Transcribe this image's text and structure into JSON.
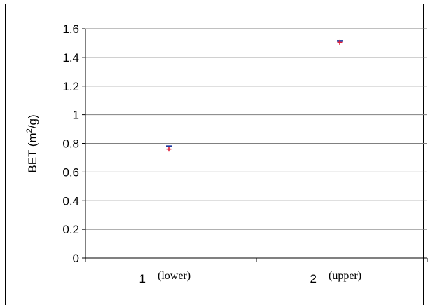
{
  "chart_data": {
    "type": "scatter",
    "title": "",
    "xlabel": "",
    "ylabel": "BET (m2/g)",
    "ylabel_parts": {
      "prefix": "BET (m",
      "sup": "2",
      "suffix": "/g)"
    },
    "ylim": [
      0,
      1.6
    ],
    "yticks": [
      "0",
      "0.2",
      "0.4",
      "0.6",
      "0.8",
      "1",
      "1.2",
      "1.4",
      "1.6"
    ],
    "grid": true,
    "legend": "none",
    "categories": [
      "1",
      "2"
    ],
    "category_notes": [
      "(lower)",
      "(upper)"
    ],
    "series": [
      {
        "values": [
          0.78,
          1.515
        ],
        "color": "#1f3aa0",
        "marker": "dash"
      },
      {
        "values": [
          0.76,
          1.505
        ],
        "color": "#e0203a",
        "marker": "plus"
      }
    ]
  }
}
